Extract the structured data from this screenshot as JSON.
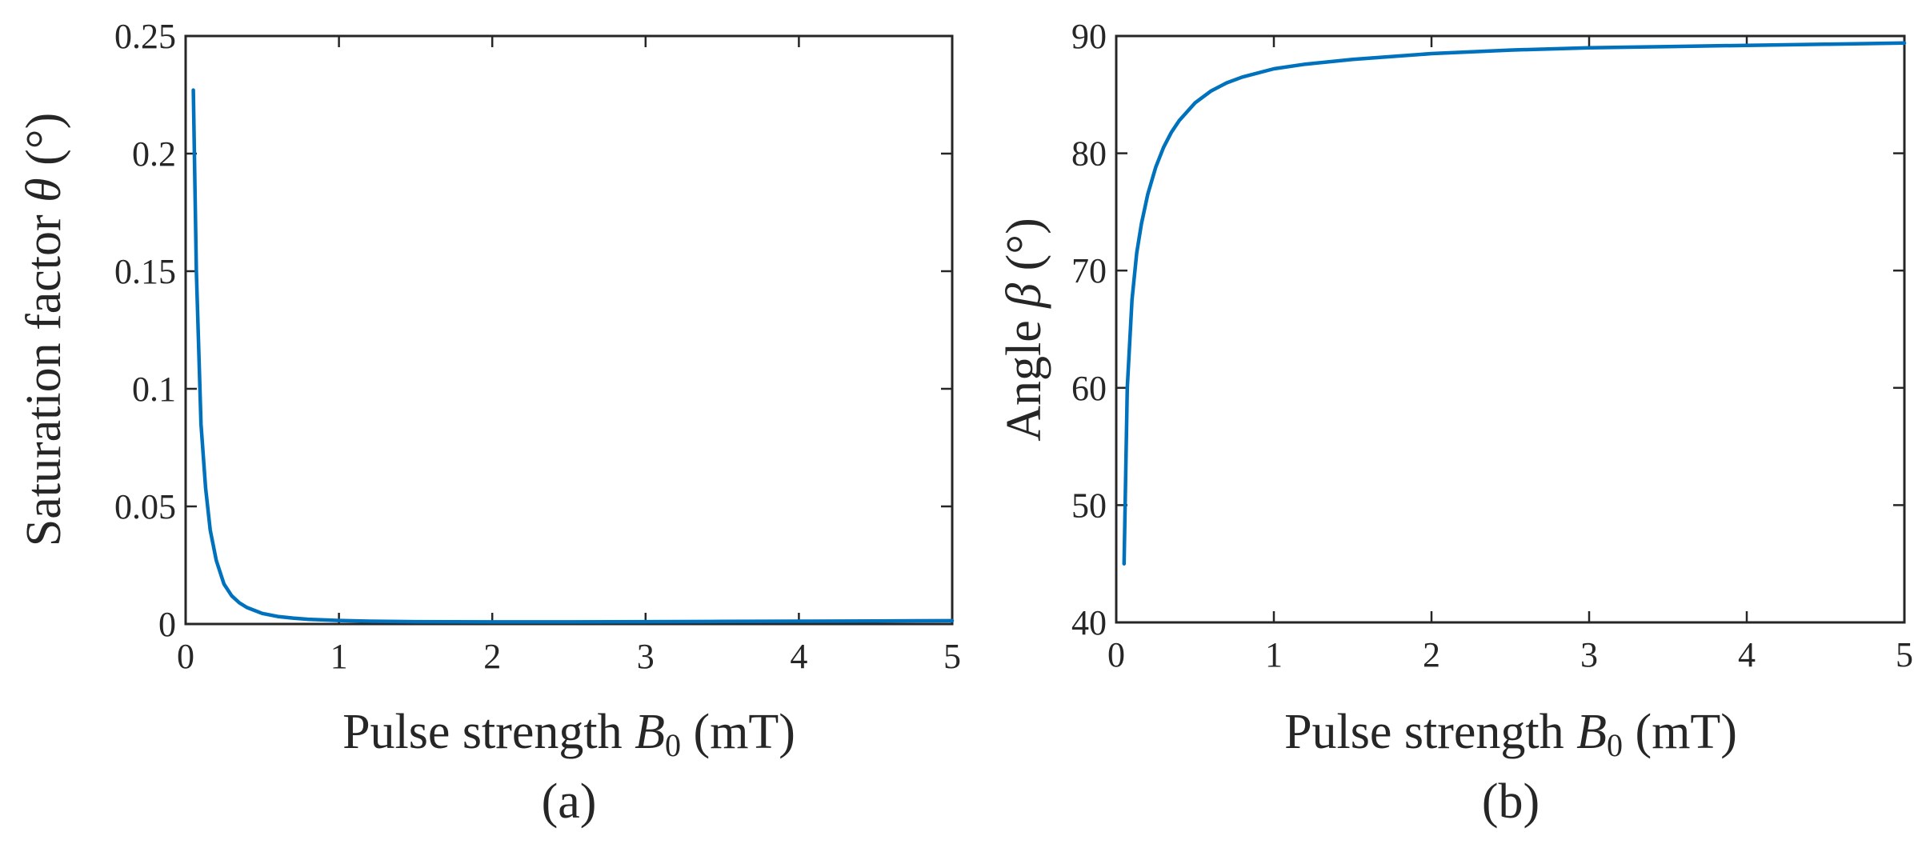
{
  "colors": {
    "series": "#0072BD",
    "axis": "#262626"
  },
  "chart_data": [
    {
      "type": "line",
      "panel_label": "(a)",
      "xlabel": {
        "text": "Pulse strength ",
        "var": "B",
        "sub": "0",
        "unit": "  (mT)"
      },
      "ylabel": {
        "text": "Saturation factor ",
        "var": "θ",
        "unit": " (°)"
      },
      "xlim": [
        0,
        5
      ],
      "ylim": [
        0,
        0.25
      ],
      "xticks": [
        0,
        1,
        2,
        3,
        4,
        5
      ],
      "xtick_labels": [
        "0",
        "1",
        "2",
        "3",
        "4",
        "5"
      ],
      "yticks": [
        0,
        0.05,
        0.1,
        0.15,
        0.2,
        0.25
      ],
      "ytick_labels": [
        "0",
        "0.05",
        "0.1",
        "0.15",
        "0.2",
        "0.25"
      ],
      "grid": false,
      "series": [
        {
          "x": [
            0.05,
            0.07,
            0.1,
            0.13,
            0.16,
            0.2,
            0.25,
            0.3,
            0.35,
            0.4,
            0.5,
            0.6,
            0.7,
            0.8,
            1.0,
            1.2,
            1.5,
            2.0,
            2.5,
            3.0,
            3.5,
            4.0,
            4.5,
            5.0
          ],
          "y": [
            0.227,
            0.15,
            0.085,
            0.058,
            0.04,
            0.027,
            0.017,
            0.012,
            0.009,
            0.007,
            0.0045,
            0.0032,
            0.0025,
            0.002,
            0.0015,
            0.0012,
            0.001,
            0.0009,
            0.0009,
            0.001,
            0.0011,
            0.0012,
            0.0013,
            0.0014
          ]
        }
      ]
    },
    {
      "type": "line",
      "panel_label": "(b)",
      "xlabel": {
        "text": "Pulse strength ",
        "var": "B",
        "sub": "0",
        "unit": "  (mT)"
      },
      "ylabel": {
        "text": "Angle  ",
        "var": "β",
        "unit": " (°)"
      },
      "xlim": [
        0,
        5
      ],
      "ylim": [
        40,
        90
      ],
      "xticks": [
        0,
        1,
        2,
        3,
        4,
        5
      ],
      "xtick_labels": [
        "0",
        "1",
        "2",
        "3",
        "4",
        "5"
      ],
      "yticks": [
        40,
        50,
        60,
        70,
        80,
        90
      ],
      "ytick_labels": [
        "40",
        "50",
        "60",
        "70",
        "80",
        "90"
      ],
      "grid": false,
      "series": [
        {
          "x": [
            0.05,
            0.07,
            0.1,
            0.13,
            0.16,
            0.2,
            0.25,
            0.3,
            0.35,
            0.4,
            0.5,
            0.6,
            0.7,
            0.8,
            1.0,
            1.2,
            1.5,
            2.0,
            2.5,
            3.0,
            3.5,
            4.0,
            4.5,
            5.0
          ],
          "y": [
            45.0,
            60.0,
            67.5,
            71.5,
            74.0,
            76.5,
            78.8,
            80.5,
            81.8,
            82.8,
            84.3,
            85.3,
            86.0,
            86.5,
            87.2,
            87.6,
            88.0,
            88.5,
            88.8,
            89.0,
            89.1,
            89.2,
            89.3,
            89.4
          ]
        }
      ]
    }
  ]
}
